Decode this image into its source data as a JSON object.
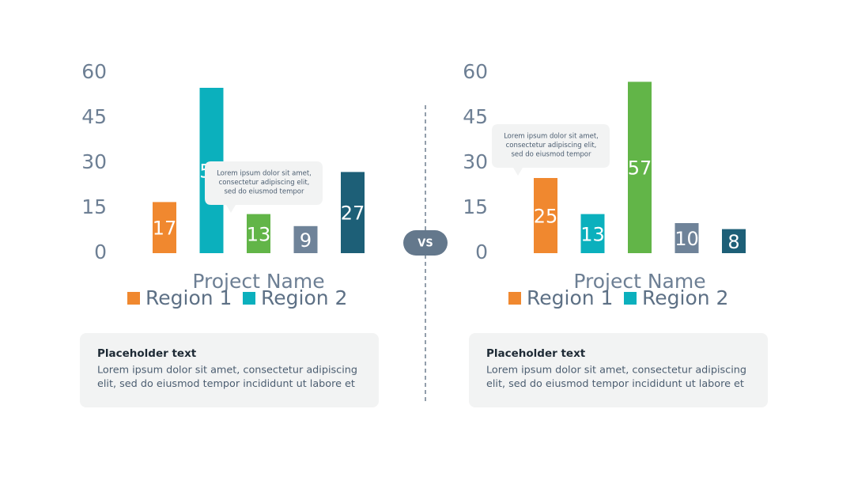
{
  "chart_data": [
    {
      "type": "bar",
      "values": [
        17,
        55,
        13,
        9,
        27
      ],
      "colors": [
        "#f0882f",
        "#0bb0bd",
        "#62b548",
        "#6f8399",
        "#1d5f77"
      ],
      "ylim": [
        0,
        60
      ],
      "yticks": [
        0,
        15,
        30,
        45,
        60
      ],
      "grid": false,
      "x_label": "Project Name",
      "legend": [
        {
          "name": "Region 1",
          "color": "#f0882f"
        },
        {
          "name": "Region 2",
          "color": "#0bb0bd"
        }
      ],
      "annotation": [
        "Lorem ipsum dolor sit amet,",
        "consectetur adipiscing elit,",
        "sed do eiusmod tempor"
      ]
    },
    {
      "type": "bar",
      "values": [
        25,
        13,
        57,
        10,
        8
      ],
      "colors": [
        "#f0882f",
        "#0bb0bd",
        "#62b548",
        "#6f8399",
        "#1d5f77"
      ],
      "ylim": [
        0,
        60
      ],
      "yticks": [
        0,
        15,
        30,
        45,
        60
      ],
      "grid": false,
      "x_label": "Project Name",
      "legend": [
        {
          "name": "Region 1",
          "color": "#f0882f"
        },
        {
          "name": "Region 2",
          "color": "#0bb0bd"
        }
      ],
      "annotation": [
        "Lorem ipsum dolor sit amet,",
        "consectetur adipiscing elit,",
        "sed do eiusmod tempor"
      ]
    }
  ],
  "vs_label": "VS",
  "text_boxes": [
    {
      "title": "Placeholder text",
      "lines": [
        "Lorem ipsum dolor sit amet, consectetur adipiscing",
        "elit, sed do eiusmod tempor incididunt ut labore et"
      ]
    },
    {
      "title": "Placeholder text",
      "lines": [
        "Lorem ipsum dolor sit amet, consectetur adipiscing",
        "elit, sed do eiusmod tempor incididunt ut labore et"
      ]
    }
  ]
}
